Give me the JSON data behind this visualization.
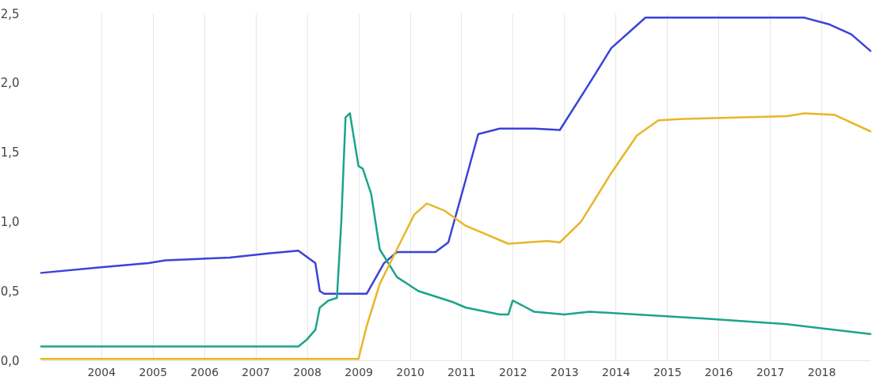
{
  "chart_data": {
    "type": "line",
    "xlim": [
      "2002-11-01",
      "2018-12-15"
    ],
    "xticks": [
      "2004",
      "2005",
      "2006",
      "2007",
      "2008",
      "2009",
      "2010",
      "2011",
      "2012",
      "2013",
      "2014",
      "2015",
      "2016",
      "2017",
      "2018"
    ],
    "ylim": [
      0,
      2.5
    ],
    "yticks": [
      {
        "value": 0,
        "label": "0,0"
      },
      {
        "value": 0.5,
        "label": "0,5"
      },
      {
        "value": 1,
        "label": "1,0"
      },
      {
        "value": 1.5,
        "label": "1,5"
      },
      {
        "value": 2,
        "label": "2,0"
      },
      {
        "value": 2.5,
        "label": "2,5"
      }
    ],
    "grid": "x",
    "series": [
      {
        "color": "#3a43d8",
        "x": [
          "2002-11",
          "2004-01",
          "2004-12",
          "2005-04",
          "2006-07",
          "2007-04",
          "2007-11",
          "2008-03",
          "2008-04",
          "2008-05",
          "2009-03",
          "2009-07",
          "2009-10",
          "2010-07",
          "2010-10",
          "2011-02",
          "2011-05",
          "2011-10",
          "2012-06",
          "2012-12",
          "2013-07",
          "2013-12",
          "2014-08",
          "2017-09",
          "2018-03",
          "2018-08",
          "2018-12-15"
        ],
        "values": [
          0.63,
          0.67,
          0.7,
          0.72,
          0.74,
          0.77,
          0.79,
          0.7,
          0.5,
          0.48,
          0.48,
          0.7,
          0.78,
          0.78,
          0.85,
          1.3,
          1.63,
          1.67,
          1.67,
          1.66,
          2.0,
          2.25,
          2.47,
          2.47,
          2.42,
          2.35,
          2.23
        ]
      },
      {
        "color": "#1aa58a",
        "x": [
          "2002-11",
          "2007-11",
          "2008-01",
          "2008-03",
          "2008-04",
          "2008-06",
          "2008-08",
          "2008-09",
          "2008-10",
          "2008-11",
          "2009-01",
          "2009-02",
          "2009-04",
          "2009-06",
          "2009-10",
          "2010-03",
          "2010-11",
          "2011-02",
          "2011-10",
          "2011-12",
          "2012-01",
          "2012-03",
          "2012-06",
          "2013-01",
          "2013-07",
          "2015-10",
          "2017-05",
          "2018-12-15"
        ],
        "values": [
          0.1,
          0.1,
          0.15,
          0.22,
          0.38,
          0.43,
          0.45,
          1.0,
          1.75,
          1.78,
          1.4,
          1.38,
          1.2,
          0.8,
          0.6,
          0.5,
          0.42,
          0.38,
          0.33,
          0.33,
          0.43,
          0.4,
          0.35,
          0.33,
          0.35,
          0.3,
          0.26,
          0.19
        ]
      },
      {
        "color": "#e8b628",
        "x": [
          "2002-11",
          "2009-01",
          "2009-03",
          "2009-06",
          "2009-10",
          "2010-02",
          "2010-05",
          "2010-09",
          "2011-02",
          "2011-12",
          "2012-09",
          "2012-12",
          "2013-05",
          "2013-12",
          "2014-06",
          "2014-11",
          "2015-05",
          "2017-05",
          "2017-09",
          "2018-04",
          "2018-12-15"
        ],
        "values": [
          0.01,
          0.01,
          0.25,
          0.55,
          0.8,
          1.05,
          1.13,
          1.08,
          0.97,
          0.84,
          0.86,
          0.85,
          1.0,
          1.35,
          1.62,
          1.73,
          1.74,
          1.76,
          1.78,
          1.77,
          1.65
        ]
      }
    ]
  }
}
